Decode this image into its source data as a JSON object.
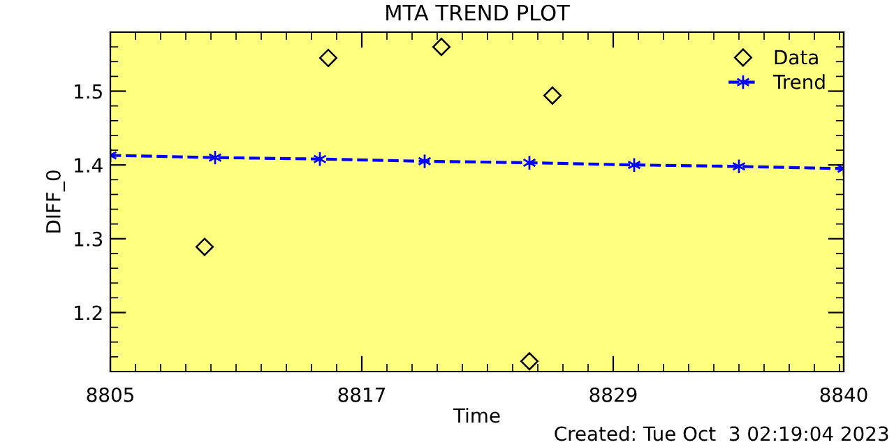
{
  "chart_data": {
    "type": "scatter",
    "title": "MTA TREND PLOT",
    "xlabel": "Time",
    "ylabel": "DIFF_0",
    "series": [
      {
        "name": "Data",
        "color": "#000000",
        "marker": "diamond",
        "x": [
          8809.5,
          8815.4,
          8820.8,
          8825.0,
          8826.1
        ],
        "values": [
          1.289,
          1.545,
          1.56,
          1.134,
          1.494
        ]
      },
      {
        "name": "Trend",
        "type": "line",
        "color": "#0000ff",
        "marker": "cross",
        "line_style": "dashed",
        "x": [
          8805,
          8810,
          8815,
          8820,
          8825,
          8830,
          8835,
          8840
        ],
        "values": [
          1.413,
          1.41,
          1.408,
          1.405,
          1.403,
          1.4,
          1.398,
          1.395
        ]
      }
    ],
    "xlim": [
      8805,
      8840
    ],
    "xticks": [
      8805,
      8817,
      8829,
      8840
    ],
    "ylim": [
      1.12,
      1.58
    ],
    "yticks": [
      1.2,
      1.3,
      1.4,
      1.5
    ],
    "grid": false,
    "legend": "top right",
    "annotations": [
      "Created: Tue Oct  3 02:19:04 2023"
    ]
  }
}
